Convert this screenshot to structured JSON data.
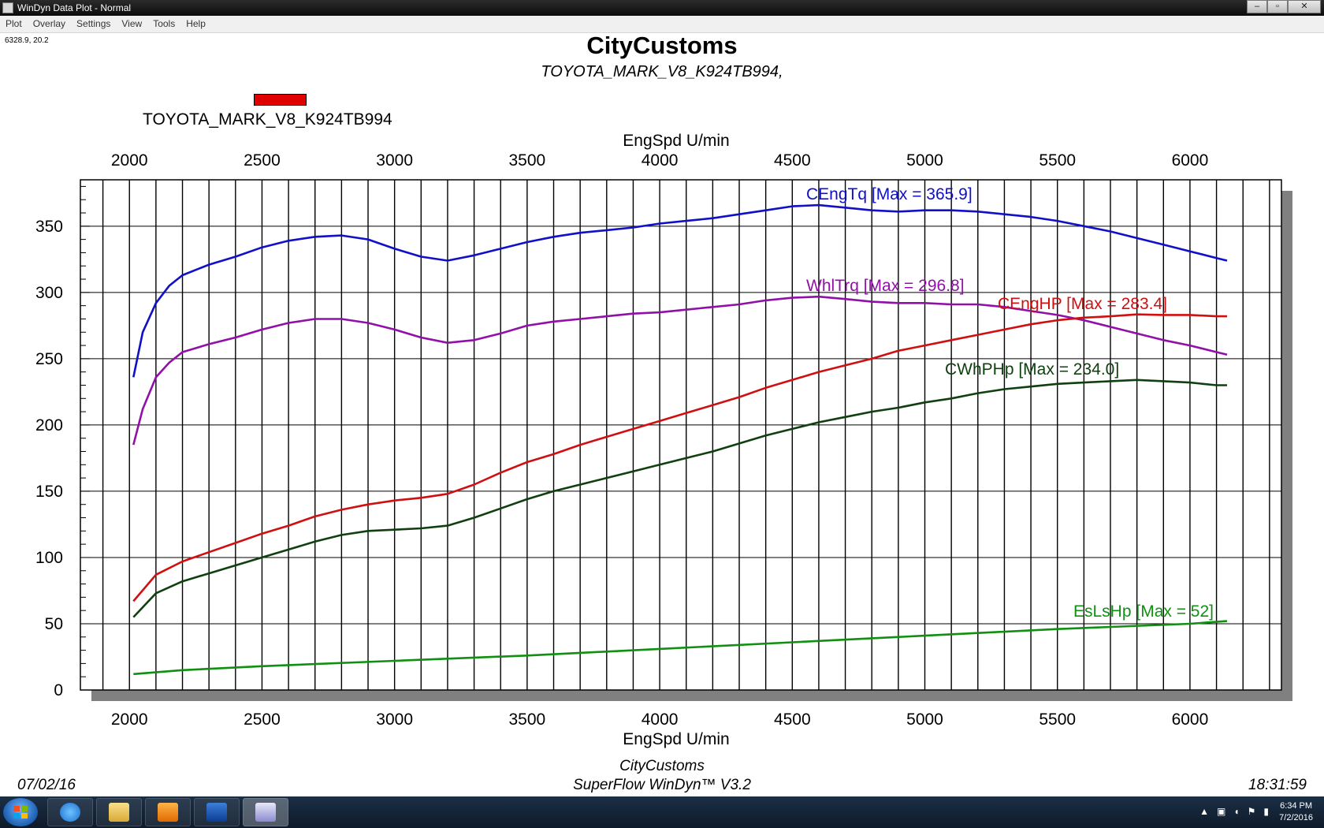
{
  "window": {
    "title": "WinDyn Data Plot - Normal",
    "buttons": {
      "minimize": "–",
      "maximize": "▫",
      "close": "✕"
    }
  },
  "menu": [
    "Plot",
    "Overlay",
    "Settings",
    "View",
    "Tools",
    "Help"
  ],
  "cursor_readout": "6328.9, 20.2",
  "header": {
    "title": "CityCustoms",
    "subtitle": "TOYOTA_MARK_V8_K924TB994,"
  },
  "legend": {
    "label": "TOYOTA_MARK_V8_K924TB994",
    "color": "#e00000"
  },
  "chart_data": {
    "type": "line",
    "xlabel_top": "EngSpd U/min",
    "xlabel": "EngSpd U/min",
    "ylabel": "",
    "xlim": [
      1815,
      6345
    ],
    "ylim": [
      0,
      385
    ],
    "xticks": [
      2000,
      2500,
      3000,
      3500,
      4000,
      4500,
      5000,
      5500,
      6000
    ],
    "yticks": [
      0,
      50,
      100,
      150,
      200,
      250,
      300,
      350
    ],
    "grid": true,
    "series": [
      {
        "name": "CEngTq [Max = 365.9]",
        "color": "#1010c8",
        "x": [
          2015,
          2050,
          2100,
          2150,
          2200,
          2300,
          2400,
          2500,
          2600,
          2700,
          2800,
          2900,
          3000,
          3100,
          3200,
          3300,
          3400,
          3500,
          3600,
          3700,
          3800,
          3900,
          4000,
          4100,
          4200,
          4300,
          4400,
          4500,
          4600,
          4700,
          4800,
          4900,
          5000,
          5100,
          5200,
          5300,
          5400,
          5500,
          5600,
          5700,
          5800,
          5900,
          6000,
          6100,
          6140
        ],
        "y": [
          236,
          270,
          292,
          305,
          313,
          321,
          327,
          334,
          339,
          342,
          343,
          340,
          333,
          327,
          324,
          328,
          333,
          338,
          342,
          345,
          347,
          349,
          352,
          354,
          356,
          359,
          362,
          365,
          365.9,
          364,
          362,
          361,
          362,
          362,
          361,
          359,
          357,
          354,
          350,
          346,
          341,
          336,
          331,
          326,
          324
        ]
      },
      {
        "name": "WhlTrq [Max = 296.8]",
        "color": "#9010a8",
        "x": [
          2015,
          2050,
          2100,
          2150,
          2200,
          2300,
          2400,
          2500,
          2600,
          2700,
          2800,
          2900,
          3000,
          3100,
          3200,
          3300,
          3400,
          3500,
          3600,
          3700,
          3800,
          3900,
          4000,
          4100,
          4200,
          4300,
          4400,
          4500,
          4600,
          4700,
          4800,
          4900,
          5000,
          5100,
          5200,
          5300,
          5400,
          5500,
          5600,
          5700,
          5800,
          5900,
          6000,
          6100,
          6140
        ],
        "y": [
          185,
          212,
          236,
          247,
          255,
          261,
          266,
          272,
          277,
          280,
          280,
          277,
          272,
          266,
          262,
          264,
          269,
          275,
          278,
          280,
          282,
          284,
          285,
          287,
          289,
          291,
          294,
          296,
          296.8,
          295,
          293,
          292,
          292,
          291,
          291,
          289,
          286,
          283,
          279,
          274,
          269,
          264,
          260,
          255,
          253
        ]
      },
      {
        "name": "CEngHP [Max = 283.4]",
        "color": "#d01010",
        "x": [
          2015,
          2100,
          2200,
          2300,
          2400,
          2500,
          2600,
          2700,
          2800,
          2900,
          3000,
          3100,
          3200,
          3300,
          3400,
          3500,
          3600,
          3700,
          3800,
          3900,
          4000,
          4100,
          4200,
          4300,
          4400,
          4500,
          4600,
          4700,
          4800,
          4900,
          5000,
          5100,
          5200,
          5300,
          5400,
          5500,
          5600,
          5700,
          5800,
          5900,
          6000,
          6100,
          6140
        ],
        "y": [
          67,
          87,
          97,
          104,
          111,
          118,
          124,
          131,
          136,
          140,
          143,
          145,
          148,
          155,
          164,
          172,
          178,
          185,
          191,
          197,
          203,
          209,
          215,
          221,
          228,
          234,
          240,
          245,
          250,
          256,
          260,
          264,
          268,
          272,
          276,
          279,
          281,
          282,
          283.4,
          283,
          283,
          282,
          282
        ]
      },
      {
        "name": "CWhPHp [Max = 234.0]",
        "color": "#104010",
        "x": [
          2015,
          2100,
          2200,
          2300,
          2400,
          2500,
          2600,
          2700,
          2800,
          2900,
          3000,
          3100,
          3200,
          3300,
          3400,
          3500,
          3600,
          3700,
          3800,
          3900,
          4000,
          4100,
          4200,
          4300,
          4400,
          4500,
          4600,
          4700,
          4800,
          4900,
          5000,
          5100,
          5200,
          5300,
          5400,
          5500,
          5600,
          5700,
          5800,
          5900,
          6000,
          6100,
          6140
        ],
        "y": [
          55,
          73,
          82,
          88,
          94,
          100,
          106,
          112,
          117,
          120,
          121,
          122,
          124,
          130,
          137,
          144,
          150,
          155,
          160,
          165,
          170,
          175,
          180,
          186,
          192,
          197,
          202,
          206,
          210,
          213,
          217,
          220,
          224,
          227,
          229,
          231,
          232,
          233,
          234,
          233,
          232,
          230,
          230
        ]
      },
      {
        "name": "EsLsHp [Max = 52]",
        "color": "#109010",
        "x": [
          2015,
          2200,
          2500,
          3000,
          3500,
          4000,
          4500,
          5000,
          5500,
          6000,
          6140
        ],
        "y": [
          12,
          15,
          18,
          22,
          26,
          31,
          36,
          41,
          46,
          50,
          52
        ]
      }
    ]
  },
  "footer": {
    "date": "07/02/16",
    "time": "18:31:59",
    "company": "CityCustoms",
    "software": "SuperFlow WinDyn™ V3.2"
  },
  "taskbar": {
    "clock_time": "6:34 PM",
    "clock_date": "7/2/2016"
  }
}
